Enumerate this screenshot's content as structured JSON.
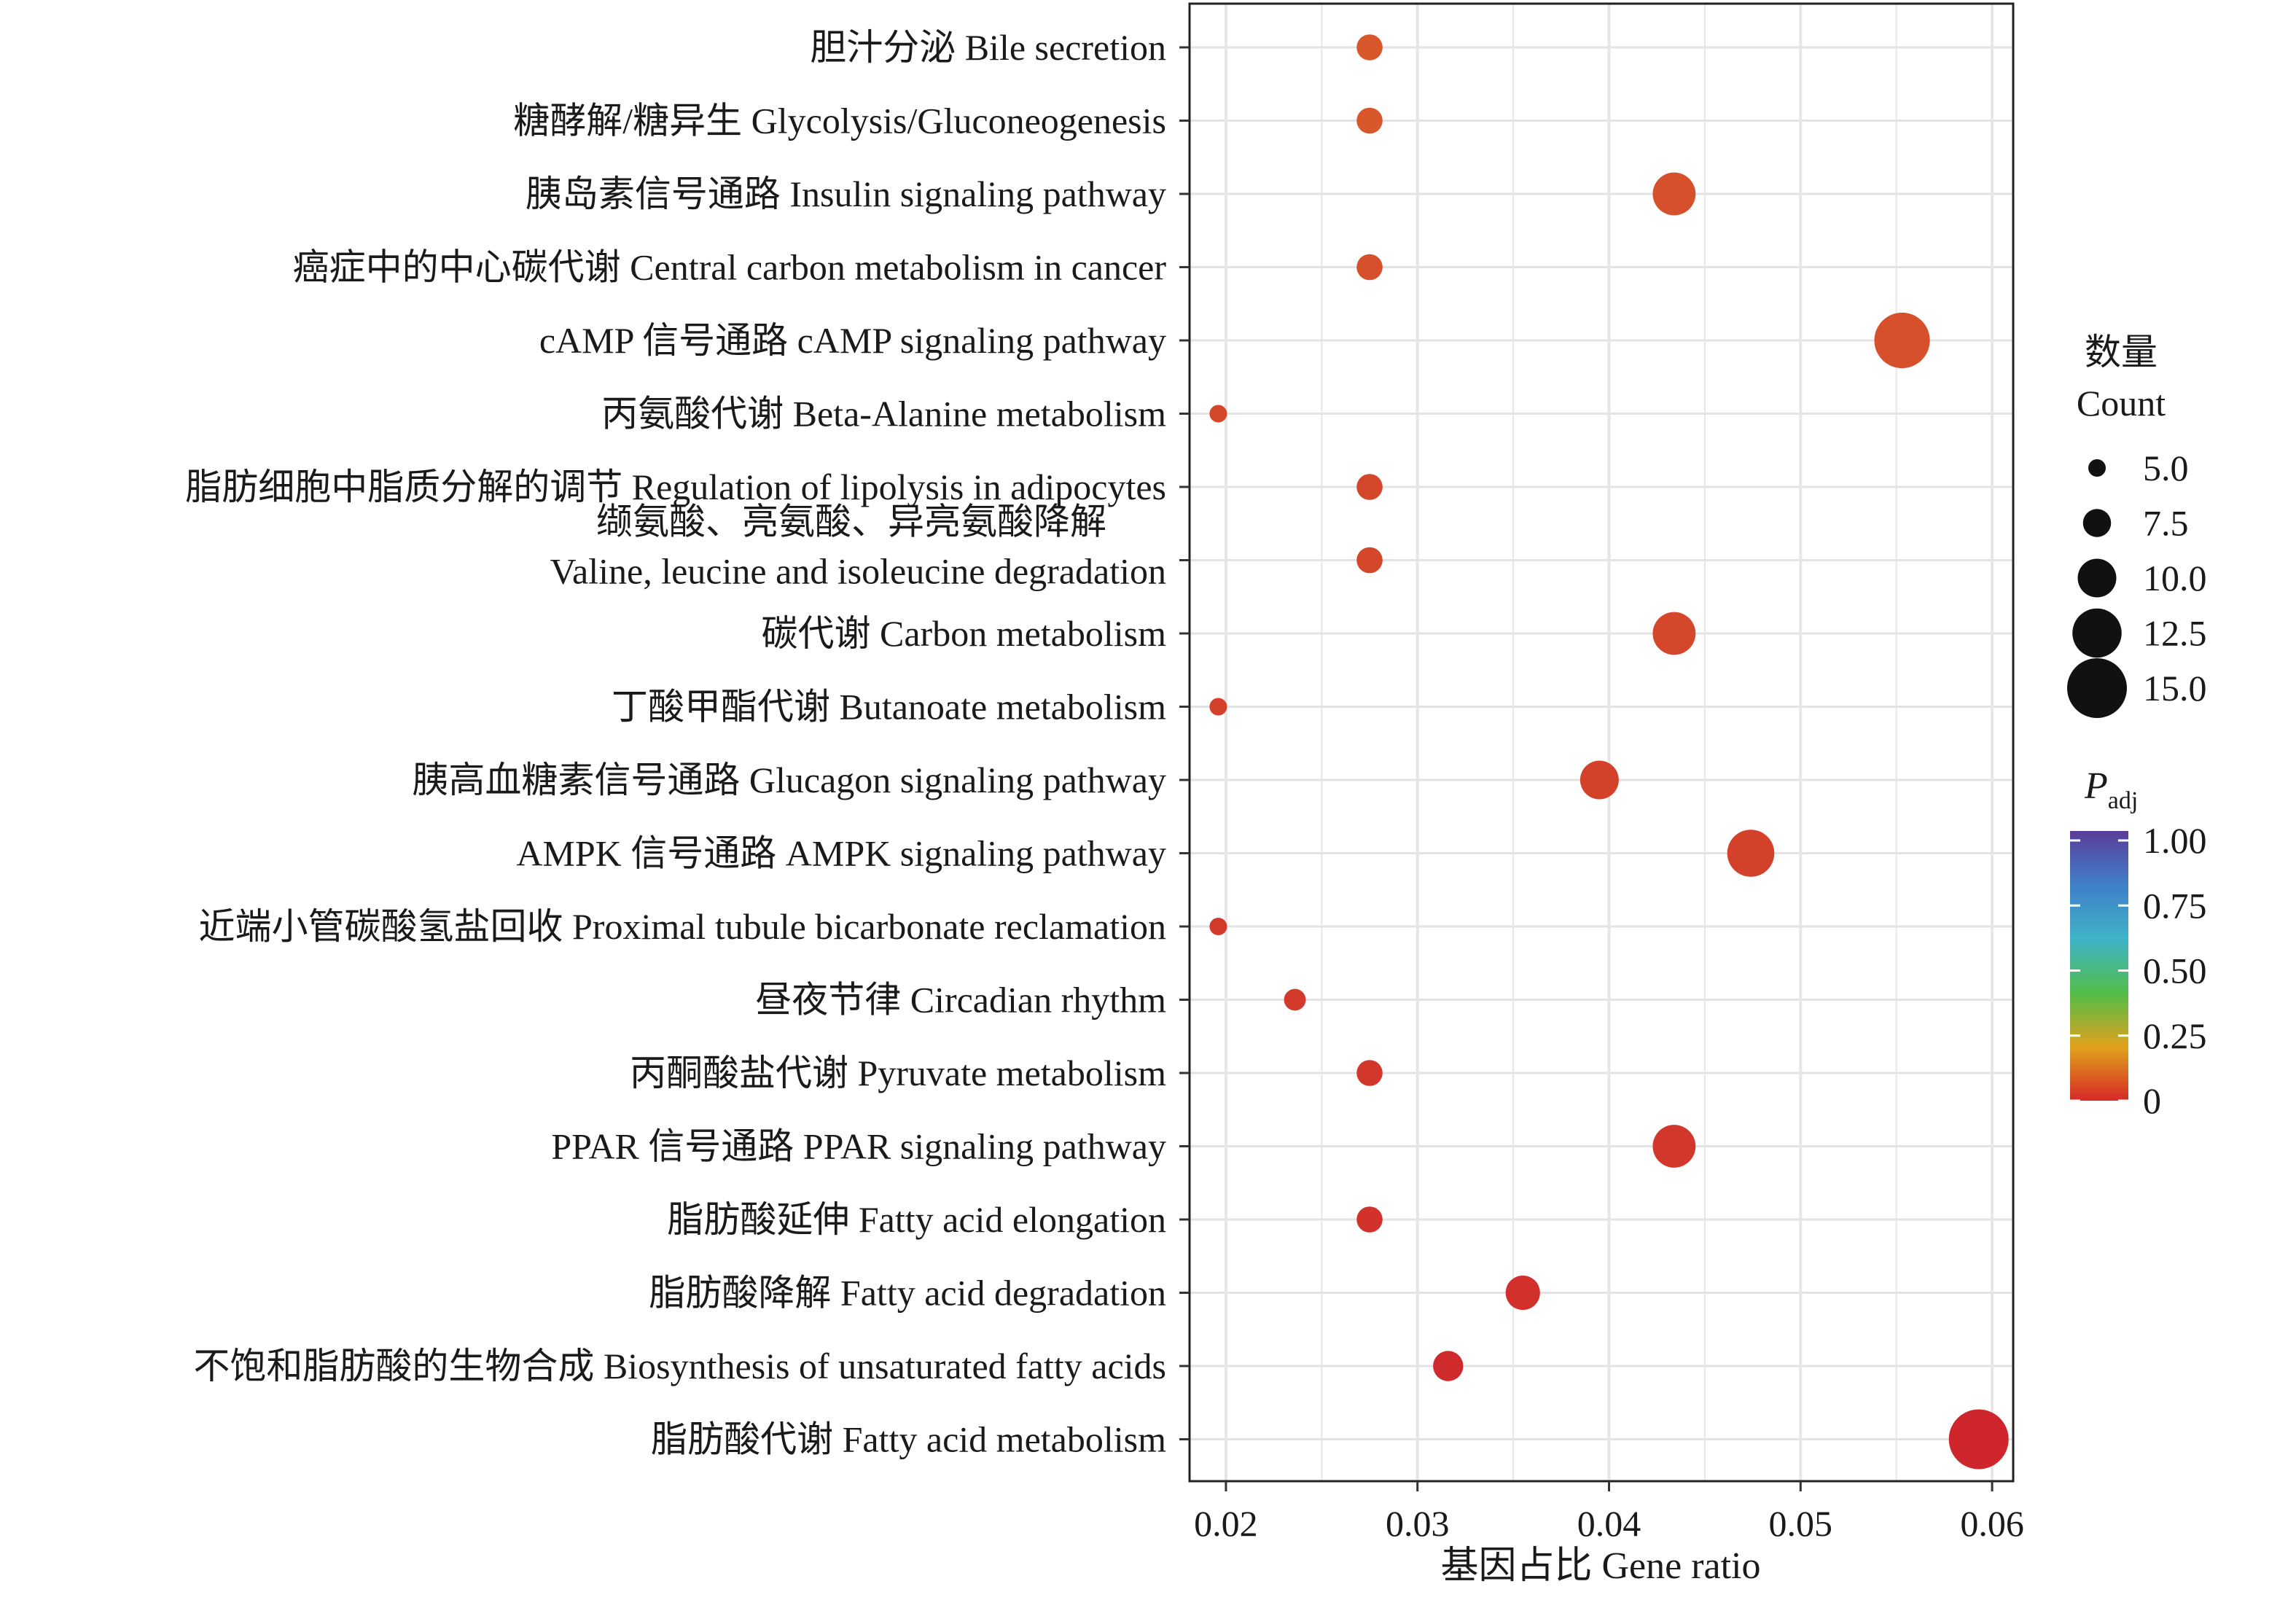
{
  "chart_data": {
    "type": "scatter",
    "xlabel": "基因占比 Gene ratio",
    "ylabel": "",
    "xlim": [
      0.0181,
      0.0611
    ],
    "x_ticks": [
      "0.02",
      "0.03",
      "0.04",
      "0.05",
      "0.06"
    ],
    "grid": true,
    "categories": [
      "胆汁分泌 Bile secretion",
      "糖酵解/糖异生 Glycolysis/Gluconeogenesis",
      "胰岛素信号通路 Insulin signaling pathway",
      "癌症中的中心碳代谢 Central carbon metabolism in cancer",
      "cAMP 信号通路 cAMP signaling pathway",
      "丙氨酸代谢 Beta-Alanine metabolism",
      "脂肪细胞中脂质分解的调节 Regulation of lipolysis in adipocytes",
      "缬氨酸、亮氨酸、异亮氨酸降解\nValine, leucine and isoleucine degradation",
      "碳代谢 Carbon metabolism",
      "丁酸甲酯代谢 Butanoate metabolism",
      "胰高血糖素信号通路 Glucagon signaling pathway",
      "AMPK 信号通路 AMPK signaling pathway",
      "近端小管碳酸氢盐回收 Proximal tubule bicarbonate reclamation",
      "昼夜节律 Circadian rhythm",
      "丙酮酸盐代谢 Pyruvate metabolism",
      "PPAR 信号通路 PPAR signaling pathway",
      "脂肪酸延伸 Fatty acid elongation",
      "脂肪酸降解 Fatty acid degradation",
      "不饱和脂肪酸的生物合成 Biosynthesis of unsaturated fatty acids",
      "脂肪酸代谢 Fatty acid metabolism"
    ],
    "points": [
      {
        "x": 0.0275,
        "count": 7,
        "padj": 0.08,
        "color": "#d8582c"
      },
      {
        "x": 0.0275,
        "count": 7,
        "padj": 0.08,
        "color": "#d8582c"
      },
      {
        "x": 0.0434,
        "count": 11,
        "padj": 0.07,
        "color": "#d6512b"
      },
      {
        "x": 0.0275,
        "count": 7,
        "padj": 0.07,
        "color": "#d6512b"
      },
      {
        "x": 0.0553,
        "count": 14,
        "padj": 0.07,
        "color": "#d6512b"
      },
      {
        "x": 0.0196,
        "count": 5,
        "padj": 0.05,
        "color": "#d4472b"
      },
      {
        "x": 0.0275,
        "count": 7,
        "padj": 0.05,
        "color": "#d4472b"
      },
      {
        "x": 0.0275,
        "count": 7,
        "padj": 0.05,
        "color": "#d4472b"
      },
      {
        "x": 0.0434,
        "count": 11,
        "padj": 0.05,
        "color": "#d4472b"
      },
      {
        "x": 0.0196,
        "count": 5,
        "padj": 0.04,
        "color": "#d3412b"
      },
      {
        "x": 0.0395,
        "count": 10,
        "padj": 0.04,
        "color": "#d3412b"
      },
      {
        "x": 0.0474,
        "count": 12,
        "padj": 0.04,
        "color": "#d3412b"
      },
      {
        "x": 0.0196,
        "count": 5,
        "padj": 0.03,
        "color": "#d23a2c"
      },
      {
        "x": 0.0236,
        "count": 6,
        "padj": 0.03,
        "color": "#d23a2c"
      },
      {
        "x": 0.0275,
        "count": 7,
        "padj": 0.03,
        "color": "#d2372c"
      },
      {
        "x": 0.0434,
        "count": 11,
        "padj": 0.03,
        "color": "#d2372c"
      },
      {
        "x": 0.0275,
        "count": 7,
        "padj": 0.02,
        "color": "#d1322c"
      },
      {
        "x": 0.0355,
        "count": 9,
        "padj": 0.02,
        "color": "#d1302c"
      },
      {
        "x": 0.0316,
        "count": 8,
        "padj": 0.01,
        "color": "#d02b2c"
      },
      {
        "x": 0.0593,
        "count": 15,
        "padj": 0.005,
        "color": "#cf252c"
      }
    ],
    "legend": {
      "size_title_line1": "数量",
      "size_title_line2": "Count",
      "size_entries": [
        {
          "label": "5.0",
          "count": 5
        },
        {
          "label": "7.5",
          "count": 7.5
        },
        {
          "label": "10.0",
          "count": 10
        },
        {
          "label": "12.5",
          "count": 12.5
        },
        {
          "label": "15.0",
          "count": 15
        }
      ],
      "color_title_main": "P",
      "color_title_sub": "adj",
      "color_ticks": [
        "1.00",
        "0.75",
        "0.50",
        "0.25",
        "0"
      ],
      "color_scale": [
        "#5b3d99",
        "#3f7fc9",
        "#3fb3c8",
        "#52bd4a",
        "#e0a21c",
        "#d62a27"
      ],
      "placement": "right"
    }
  }
}
